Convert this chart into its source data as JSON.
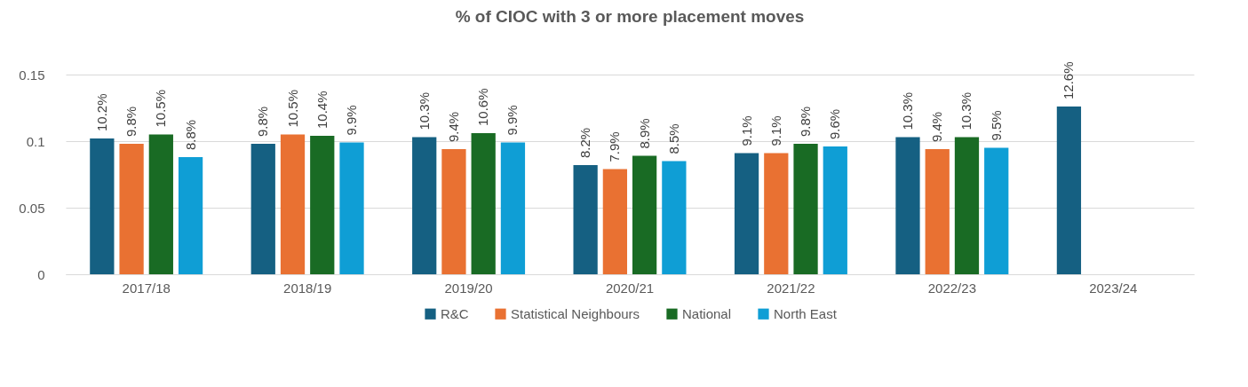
{
  "chart_data": {
    "type": "bar",
    "title": "% of CIOC with 3 or more placement moves",
    "categories": [
      "2017/18",
      "2018/19",
      "2019/20",
      "2020/21",
      "2021/22",
      "2022/23",
      "2023/24"
    ],
    "series": [
      {
        "name": "R&C",
        "color": "#156082",
        "values": [
          0.102,
          0.098,
          0.103,
          0.082,
          0.091,
          0.103,
          0.126
        ],
        "value_labels": [
          "10.2%",
          "9.8%",
          "10.3%",
          "8.2%",
          "9.1%",
          "10.3%",
          "12.6%"
        ]
      },
      {
        "name": "Statistical Neighbours",
        "color": "#e97132",
        "values": [
          0.098,
          0.105,
          0.094,
          0.079,
          0.091,
          0.094,
          null
        ],
        "value_labels": [
          "9.8%",
          "10.5%",
          "9.4%",
          "7.9%",
          "9.1%",
          "9.4%",
          null
        ]
      },
      {
        "name": "National",
        "color": "#196b24",
        "values": [
          0.105,
          0.104,
          0.106,
          0.089,
          0.098,
          0.103,
          null
        ],
        "value_labels": [
          "10.5%",
          "10.4%",
          "10.6%",
          "8.9%",
          "9.8%",
          "10.3%",
          null
        ]
      },
      {
        "name": "North East",
        "color": "#0f9ed5",
        "values": [
          0.088,
          0.099,
          0.099,
          0.085,
          0.096,
          0.095,
          null
        ],
        "value_labels": [
          "8.8%",
          "9.9%",
          "9.9%",
          "8.5%",
          "9.6%",
          "9.5%",
          null
        ]
      }
    ],
    "ylim": [
      0,
      0.15
    ],
    "yticks": [
      0,
      0.05,
      0.1,
      0.15
    ],
    "grid": "y",
    "legend": "bottom"
  }
}
